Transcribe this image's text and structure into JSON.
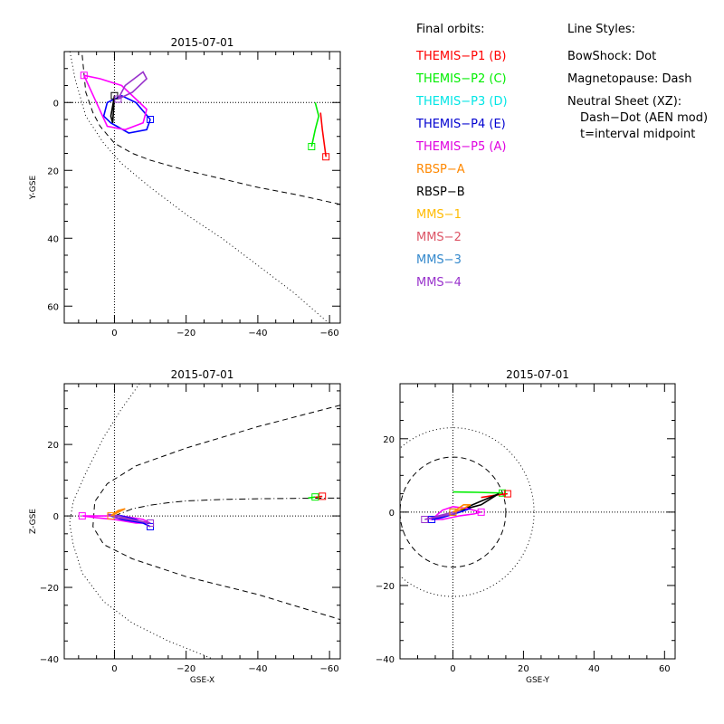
{
  "chart_data": [
    {
      "type": "line",
      "title": "2015-07-01",
      "xlabel": "",
      "ylabel": "Y-GSE",
      "xlim": [
        14,
        -63
      ],
      "ylim": [
        65,
        -15
      ],
      "x_ticks": [
        0,
        -20,
        -40,
        -60
      ],
      "y_ticks": [
        0,
        20,
        40,
        60
      ],
      "x_tick_labels": [
        "0",
        "−20",
        "−40",
        "−60"
      ],
      "y_tick_labels": [
        "0",
        "20",
        "40",
        "60"
      ],
      "grid": false,
      "series": [
        {
          "name": "BowShock: Dot",
          "style": "dotted",
          "color": "#000000",
          "x": [
            12.4,
            11,
            8,
            3,
            -2,
            -10,
            -20,
            -30,
            -40,
            -50,
            -63
          ],
          "y": [
            -15,
            -7,
            4,
            12,
            18,
            25,
            33,
            40,
            48,
            56,
            68
          ]
        },
        {
          "name": "Magnetopause: Dash",
          "style": "dashed",
          "color": "#000000",
          "x": [
            9,
            8,
            6,
            4,
            0,
            -5,
            -10,
            -20,
            -30,
            -40,
            -50,
            -63
          ],
          "y": [
            -14,
            -3,
            3,
            7,
            12,
            15,
            17,
            20,
            22.5,
            25,
            27,
            30
          ]
        },
        {
          "name": "THEMIS-P1",
          "color": "#ff0000",
          "x": [
            -57.5,
            -58,
            -58.5,
            -59
          ],
          "y": [
            3,
            8,
            12,
            16
          ]
        },
        {
          "name": "THEMIS-P2",
          "color": "#00ee00",
          "x": [
            -56,
            -57,
            -56,
            -55
          ],
          "y": [
            0,
            4,
            8,
            13
          ]
        },
        {
          "name": "THEMIS-P4",
          "color": "#0000ff",
          "x": [
            -10,
            -6,
            -2,
            2,
            3,
            1,
            -4,
            -9,
            -10
          ],
          "y": [
            5,
            0,
            -2,
            0,
            4,
            6,
            9,
            8,
            5
          ]
        },
        {
          "name": "THEMIS-P5",
          "color": "#ff00ff",
          "x": [
            8.5,
            4,
            -2,
            -6,
            -9,
            -8,
            -3,
            2,
            8.5
          ],
          "y": [
            -8,
            -7,
            -5,
            -1,
            2,
            6,
            8,
            7,
            -8
          ]
        },
        {
          "name": "RBSP-B",
          "color": "#000000",
          "x": [
            0,
            0.5,
            1,
            0.5,
            0
          ],
          "y": [
            -2,
            1,
            4,
            6,
            -2
          ]
        },
        {
          "name": "MMS-4",
          "color": "#9933cc",
          "x": [
            -1,
            -5,
            -9,
            -8,
            -3,
            -1
          ],
          "y": [
            -1,
            -3,
            -7,
            -9,
            -5,
            -1
          ]
        }
      ]
    },
    {
      "type": "line",
      "title": "2015-07-01",
      "xlabel": "GSE-X",
      "ylabel": "Z-GSE",
      "xlim": [
        14,
        -63
      ],
      "ylim": [
        -40,
        37
      ],
      "x_ticks": [
        0,
        -20,
        -40,
        -60
      ],
      "y_ticks": [
        -40,
        -20,
        0,
        20
      ],
      "x_tick_labels": [
        "0",
        "−20",
        "−40",
        "−60"
      ],
      "y_tick_labels": [
        "−40",
        "−20",
        "0",
        "20"
      ],
      "grid": false,
      "series": [
        {
          "name": "BowShock: Dot",
          "style": "dotted",
          "color": "#000000",
          "x": [
            -7,
            -2,
            3,
            8,
            11.5,
            12.5,
            11.5,
            9,
            3,
            -5,
            -15,
            -25,
            -32
          ],
          "y": [
            37,
            30,
            22,
            12,
            4,
            -2,
            -8,
            -16,
            -24,
            -30,
            -35,
            -39,
            -42
          ]
        },
        {
          "name": "Magnetopause: Dash",
          "style": "dashed",
          "color": "#000000",
          "x": [
            -63,
            -40,
            -20,
            -6,
            2,
            5.5,
            6,
            3,
            -5,
            -20,
            -40,
            -63
          ],
          "y": [
            31,
            25,
            19,
            14,
            9,
            4,
            -3,
            -8,
            -12,
            -17,
            -22,
            -29
          ]
        },
        {
          "name": "Neutral Sheet (XZ)",
          "style": "dashdot",
          "color": "#000000",
          "x": [
            0,
            -5,
            -10,
            -15,
            -20,
            -30,
            -40,
            -50,
            -63
          ],
          "y": [
            0,
            2,
            3,
            3.7,
            4.2,
            4.6,
            4.8,
            4.9,
            5
          ]
        },
        {
          "name": "THEMIS-P1",
          "color": "#ff0000",
          "x": [
            -56,
            -58
          ],
          "y": [
            5.2,
            5.5
          ]
        },
        {
          "name": "THEMIS-P2",
          "color": "#00ee00",
          "x": [
            -54,
            -56
          ],
          "y": [
            5,
            5.3
          ]
        },
        {
          "name": "THEMIS-P5",
          "color": "#ff00ff",
          "x": [
            9,
            4,
            -2,
            -8,
            -10,
            -6,
            0,
            5,
            9
          ],
          "y": [
            0,
            0,
            0,
            -1,
            -2,
            -2,
            -1,
            -0.5,
            0
          ]
        },
        {
          "name": "THEMIS-P4",
          "color": "#0000ff",
          "x": [
            -10,
            -6,
            -2,
            1,
            -2,
            -8,
            -10
          ],
          "y": [
            -3,
            -1,
            0,
            0,
            -1,
            -2,
            -3
          ]
        },
        {
          "name": "MMS-4",
          "color": "#9933cc",
          "x": [
            -10,
            -5,
            -1,
            2,
            -1,
            -7,
            -10
          ],
          "y": [
            -2,
            -1,
            0,
            0.5,
            -0.5,
            -1.5,
            -2
          ]
        },
        {
          "name": "RBSP-A",
          "color": "#ff8800",
          "x": [
            1,
            -1,
            -3,
            -1,
            1
          ],
          "y": [
            0,
            1,
            2,
            1.5,
            0
          ]
        }
      ]
    },
    {
      "type": "line",
      "title": "2015-07-01",
      "xlabel": "GSE-Y",
      "ylabel": "",
      "xlim": [
        -15,
        63
      ],
      "ylim": [
        -40,
        35
      ],
      "x_ticks": [
        0,
        20,
        40,
        60
      ],
      "y_ticks": [
        -40,
        -20,
        0,
        20
      ],
      "x_tick_labels": [
        "0",
        "20",
        "40",
        "60"
      ],
      "y_tick_labels": [
        "−40",
        "−20",
        "0",
        "20"
      ],
      "grid": false,
      "series": [
        {
          "name": "Magnetopause: Dash",
          "style": "dashed",
          "color": "#000000",
          "type": "circle",
          "radius": 15
        },
        {
          "name": "BowShock: Dot",
          "style": "dotted",
          "color": "#000000",
          "type": "circle",
          "radius": 23
        },
        {
          "name": "THEMIS-P2",
          "color": "#00ee00",
          "x": [
            0,
            7,
            14
          ],
          "y": [
            5.5,
            5.4,
            5.2
          ]
        },
        {
          "name": "THEMIS-P1",
          "color": "#ff0000",
          "x": [
            8,
            12,
            15.5
          ],
          "y": [
            4,
            4.6,
            5
          ]
        },
        {
          "name": "RBSP-B",
          "color": "#000000",
          "x": [
            0,
            4,
            8,
            13,
            8,
            2,
            0
          ],
          "y": [
            0,
            1,
            2,
            5,
            3,
            0.5,
            0
          ]
        },
        {
          "name": "THEMIS-P5",
          "color": "#ff00ff",
          "x": [
            8,
            4,
            0,
            -3,
            -6,
            -3,
            2,
            6,
            8
          ],
          "y": [
            0,
            1,
            1.5,
            0.5,
            -2,
            -2,
            -1,
            -0.5,
            0
          ]
        },
        {
          "name": "THEMIS-P4",
          "color": "#0000ff",
          "x": [
            -6,
            -2,
            2,
            5,
            2,
            -3,
            -6
          ],
          "y": [
            -2,
            -1,
            0,
            1,
            0,
            -1.5,
            -2
          ]
        },
        {
          "name": "MMS-4",
          "color": "#9933cc",
          "x": [
            -8,
            -4,
            0,
            2,
            0,
            -5,
            -8
          ],
          "y": [
            -2,
            -1,
            0,
            0.5,
            -0.5,
            -1.5,
            -2
          ]
        },
        {
          "name": "RBSP-A",
          "color": "#ff8800",
          "x": [
            0,
            3,
            5,
            3,
            0
          ],
          "y": [
            0,
            1,
            2,
            2,
            0
          ]
        }
      ]
    }
  ],
  "legend": {
    "orbits_title": "Final orbits:",
    "orbits": [
      {
        "label": "THEMIS−P1 (B)",
        "color": "#ff0000"
      },
      {
        "label": "THEMIS−P2 (C)",
        "color": "#00ee00"
      },
      {
        "label": "THEMIS−P3 (D)",
        "color": "#00e5e5"
      },
      {
        "label": "THEMIS−P4 (E)",
        "color": "#0000d0"
      },
      {
        "label": "THEMIS−P5 (A)",
        "color": "#e000e0"
      },
      {
        "label": "RBSP−A",
        "color": "#ff8800"
      },
      {
        "label": "RBSP−B",
        "color": "#000000"
      },
      {
        "label": "MMS−1",
        "color": "#ffbb00"
      },
      {
        "label": "MMS−2",
        "color": "#dd5566"
      },
      {
        "label": "MMS−3",
        "color": "#3388cc"
      },
      {
        "label": "MMS−4",
        "color": "#9933cc"
      }
    ],
    "styles_title": "Line Styles:",
    "styles": [
      "BowShock: Dot",
      "Magnetopause: Dash",
      "Neutral Sheet (XZ):",
      "Dash−Dot (AEN mod)",
      "t=interval midpoint"
    ]
  }
}
